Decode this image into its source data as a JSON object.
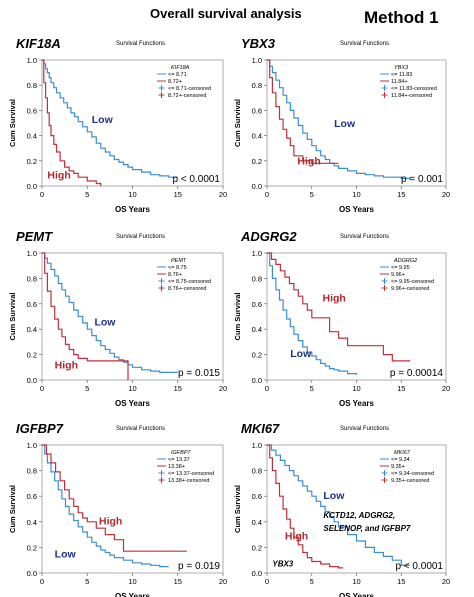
{
  "page": {
    "title": "Overall survival analysis",
    "method": "Method 1"
  },
  "chart_data": [
    {
      "type": "line",
      "gene": "KIF18A",
      "subtitle": "Survival Functions",
      "xlabel": "OS Years",
      "ylabel": "Cum Survival",
      "xlim": [
        0,
        20
      ],
      "ylim": [
        0,
        1.0
      ],
      "xticks": [
        "0",
        "5",
        "10",
        "15",
        "20"
      ],
      "yticks": [
        "0.0",
        "0.2",
        "0.4",
        "0.6",
        "0.8",
        "1.0"
      ],
      "legend_title": "KIF18A",
      "legend": [
        "<= 8.71",
        "8.72+",
        "<= 8.71-censored",
        "8.72+-censored"
      ],
      "pvalue": "p < 0.0001",
      "annotations": [
        {
          "text": "Low",
          "x": 5.5,
          "y": 0.5,
          "color": "#1f2f8c"
        },
        {
          "text": "High",
          "x": 0.6,
          "y": 0.06,
          "color": "#b0282e"
        }
      ],
      "series": [
        {
          "color": "#3a8ed6",
          "x": [
            0,
            0.2,
            0.4,
            0.6,
            0.8,
            1,
            1.3,
            1.6,
            2,
            2.4,
            2.8,
            3.2,
            3.6,
            4,
            4.5,
            5,
            5.5,
            6,
            6.5,
            7,
            7.5,
            8,
            8.5,
            9,
            9.5,
            10,
            11,
            12,
            13,
            14,
            15
          ],
          "y": [
            1,
            0.97,
            0.93,
            0.9,
            0.86,
            0.82,
            0.78,
            0.74,
            0.7,
            0.66,
            0.62,
            0.58,
            0.55,
            0.51,
            0.47,
            0.43,
            0.39,
            0.34,
            0.3,
            0.27,
            0.24,
            0.21,
            0.19,
            0.17,
            0.15,
            0.13,
            0.11,
            0.09,
            0.08,
            0.07,
            0.07
          ]
        },
        {
          "color": "#c0303a",
          "x": [
            0,
            0.2,
            0.4,
            0.6,
            0.8,
            1,
            1.3,
            1.6,
            2,
            2.5,
            3,
            3.5,
            4,
            5,
            6,
            6.5
          ],
          "y": [
            1,
            0.82,
            0.7,
            0.58,
            0.48,
            0.4,
            0.33,
            0.27,
            0.2,
            0.15,
            0.12,
            0.1,
            0.07,
            0.04,
            0.02,
            0
          ]
        }
      ]
    },
    {
      "type": "line",
      "gene": "YBX3",
      "subtitle": "Survival Functions",
      "xlabel": "OS Years",
      "ylabel": "Cum Survival",
      "xlim": [
        0,
        20
      ],
      "ylim": [
        0,
        1.0
      ],
      "xticks": [
        "0",
        "5",
        "10",
        "15",
        "20"
      ],
      "yticks": [
        "0.0",
        "0.2",
        "0.4",
        "0.6",
        "0.8",
        "1.0"
      ],
      "legend_title": "YBX3",
      "legend": [
        "<= 11.83",
        "11.84+",
        "<= 11.83-censored",
        "11.84+-censored"
      ],
      "pvalue": "p = 0.001",
      "annotations": [
        {
          "text": "Low",
          "x": 7.5,
          "y": 0.47,
          "color": "#1f2f8c"
        },
        {
          "text": "High",
          "x": 3.4,
          "y": 0.17,
          "color": "#b0282e"
        }
      ],
      "series": [
        {
          "color": "#3a8ed6",
          "x": [
            0,
            0.3,
            0.6,
            1,
            1.4,
            1.8,
            2.2,
            2.6,
            3,
            3.5,
            4,
            4.5,
            5,
            5.5,
            6,
            6.5,
            7,
            7.5,
            8,
            9,
            10,
            11,
            12,
            13,
            15,
            16
          ],
          "y": [
            1,
            0.95,
            0.9,
            0.84,
            0.78,
            0.72,
            0.66,
            0.6,
            0.54,
            0.48,
            0.42,
            0.37,
            0.32,
            0.28,
            0.24,
            0.21,
            0.18,
            0.16,
            0.14,
            0.12,
            0.1,
            0.09,
            0.08,
            0.07,
            0.06,
            0.05
          ]
        },
        {
          "color": "#c0303a",
          "x": [
            0,
            0.3,
            0.6,
            1,
            1.4,
            1.8,
            2.2,
            2.6,
            3,
            4,
            5,
            6,
            8
          ],
          "y": [
            1,
            0.86,
            0.74,
            0.63,
            0.53,
            0.45,
            0.38,
            0.32,
            0.24,
            0.2,
            0.18,
            0.18,
            0.18
          ]
        }
      ]
    },
    {
      "type": "line",
      "gene": "PEMT",
      "subtitle": "Survival Functions",
      "xlabel": "OS Years",
      "ylabel": "Cum Survival",
      "xlim": [
        0,
        20
      ],
      "ylim": [
        0,
        1.0
      ],
      "xticks": [
        "0",
        "5",
        "10",
        "15",
        "20"
      ],
      "yticks": [
        "0.0",
        "0.2",
        "0.4",
        "0.6",
        "0.8",
        "1.0"
      ],
      "legend_title": "PEMT",
      "legend": [
        "<= 8.75",
        "8.76+",
        "<= 8.75-censored",
        "8.76+-censored"
      ],
      "pvalue": "p = 0.015",
      "annotations": [
        {
          "text": "Low",
          "x": 5.8,
          "y": 0.43,
          "color": "#1f2f8c"
        },
        {
          "text": "High",
          "x": 1.4,
          "y": 0.09,
          "color": "#b0282e"
        }
      ],
      "series": [
        {
          "color": "#3a8ed6",
          "x": [
            0,
            0.3,
            0.6,
            1,
            1.4,
            1.8,
            2.2,
            2.6,
            3,
            3.5,
            4,
            4.5,
            5,
            5.5,
            6,
            6.5,
            7,
            7.5,
            8,
            8.5,
            9,
            9.5,
            10,
            11,
            12,
            13,
            15
          ],
          "y": [
            1,
            0.96,
            0.92,
            0.87,
            0.82,
            0.76,
            0.71,
            0.66,
            0.61,
            0.55,
            0.5,
            0.45,
            0.4,
            0.35,
            0.31,
            0.27,
            0.24,
            0.21,
            0.18,
            0.16,
            0.14,
            0.12,
            0.1,
            0.08,
            0.07,
            0.06,
            0.06
          ]
        },
        {
          "color": "#c0303a",
          "x": [
            0,
            0.3,
            0.6,
            1,
            1.4,
            1.8,
            2.2,
            2.6,
            3,
            3.5,
            4,
            5,
            6,
            7,
            8,
            9,
            9.5
          ],
          "y": [
            1,
            0.84,
            0.7,
            0.58,
            0.48,
            0.4,
            0.34,
            0.28,
            0.24,
            0.2,
            0.17,
            0.15,
            0.15,
            0.15,
            0.15,
            0.15,
            0
          ]
        }
      ]
    },
    {
      "type": "line",
      "gene": "ADGRG2",
      "subtitle": "Survival Functions",
      "xlabel": "OS Years",
      "ylabel": "Cum Survival",
      "xlim": [
        0,
        20
      ],
      "ylim": [
        0,
        1.0
      ],
      "xticks": [
        "0",
        "5",
        "10",
        "15",
        "20"
      ],
      "yticks": [
        "0.0",
        "0.2",
        "0.4",
        "0.6",
        "0.8",
        "1.0"
      ],
      "legend_title": "ADGRG2",
      "legend": [
        "<= 9.95",
        "9.96+",
        "<= 9.95-censored",
        "9.96+-censored"
      ],
      "pvalue": "p = 0.00014",
      "annotations": [
        {
          "text": "High",
          "x": 6.2,
          "y": 0.62,
          "color": "#b0282e"
        },
        {
          "text": "Low",
          "x": 2.6,
          "y": 0.18,
          "color": "#1f2f8c"
        }
      ],
      "series": [
        {
          "color": "#3a8ed6",
          "x": [
            0,
            0.3,
            0.6,
            1,
            1.4,
            1.8,
            2.2,
            2.6,
            3,
            3.5,
            4,
            4.5,
            5,
            5.5,
            6,
            6.5,
            7,
            7.5,
            8,
            9,
            10
          ],
          "y": [
            1,
            0.9,
            0.8,
            0.71,
            0.63,
            0.55,
            0.48,
            0.42,
            0.36,
            0.31,
            0.26,
            0.22,
            0.19,
            0.16,
            0.13,
            0.11,
            0.09,
            0.08,
            0.07,
            0.05,
            0.04
          ]
        },
        {
          "color": "#c0303a",
          "x": [
            0,
            0.5,
            1,
            1.5,
            2,
            2.5,
            3,
            3.5,
            4,
            4.5,
            5,
            6,
            7,
            8,
            9,
            10,
            11,
            12,
            13,
            14,
            15,
            16
          ],
          "y": [
            1,
            0.95,
            0.91,
            0.86,
            0.81,
            0.76,
            0.71,
            0.66,
            0.6,
            0.55,
            0.49,
            0.49,
            0.38,
            0.33,
            0.27,
            0.27,
            0.27,
            0.27,
            0.2,
            0.15,
            0.15,
            0.15
          ]
        }
      ]
    },
    {
      "type": "line",
      "gene": "IGFBP7",
      "subtitle": "Survival Functions",
      "xlabel": "OS Years",
      "ylabel": "Cum Survival",
      "xlim": [
        0,
        20
      ],
      "ylim": [
        0,
        1.0
      ],
      "xticks": [
        "0",
        "5",
        "10",
        "15",
        "20"
      ],
      "yticks": [
        "0.0",
        "0.2",
        "0.4",
        "0.6",
        "0.8",
        "1.0"
      ],
      "legend_title": "IGFBP7",
      "legend": [
        "<= 13.37",
        "13.38+",
        "<= 13.37-censored",
        "13.38+-censored"
      ],
      "pvalue": "p = 0.019",
      "annotations": [
        {
          "text": "High",
          "x": 6.3,
          "y": 0.38,
          "color": "#b0282e"
        },
        {
          "text": "Low",
          "x": 1.4,
          "y": 0.12,
          "color": "#1f2f8c"
        }
      ],
      "series": [
        {
          "color": "#3a8ed6",
          "x": [
            0,
            0.3,
            0.6,
            1,
            1.4,
            1.8,
            2.2,
            2.6,
            3,
            3.5,
            4,
            4.5,
            5,
            5.5,
            6,
            6.5,
            7,
            7.5,
            8,
            9,
            10,
            11,
            12,
            13,
            14
          ],
          "y": [
            1,
            0.93,
            0.86,
            0.79,
            0.72,
            0.65,
            0.58,
            0.52,
            0.46,
            0.41,
            0.36,
            0.32,
            0.28,
            0.24,
            0.21,
            0.18,
            0.16,
            0.14,
            0.12,
            0.1,
            0.08,
            0.07,
            0.06,
            0.05,
            0.05
          ]
        },
        {
          "color": "#c0303a",
          "x": [
            0,
            0.5,
            1,
            1.5,
            2,
            2.5,
            3,
            3.5,
            4,
            4.5,
            5,
            6,
            7,
            8,
            9,
            10,
            12,
            14,
            16
          ],
          "y": [
            1,
            0.93,
            0.86,
            0.79,
            0.72,
            0.65,
            0.58,
            0.52,
            0.47,
            0.43,
            0.4,
            0.35,
            0.3,
            0.26,
            0.17,
            0.17,
            0.17,
            0.17,
            0.17
          ]
        }
      ]
    },
    {
      "type": "line",
      "gene": "MKI67",
      "subtitle": "Survival Functions",
      "xlabel": "OS Years",
      "ylabel": "Cum Survival",
      "xlim": [
        0,
        20
      ],
      "ylim": [
        0,
        1.0
      ],
      "xticks": [
        "0",
        "5",
        "10",
        "15",
        "20"
      ],
      "yticks": [
        "0.0",
        "0.2",
        "0.4",
        "0.6",
        "0.8",
        "1.0"
      ],
      "legend_title": "MKI67",
      "legend": [
        "<= 9.34",
        "9.35+",
        "<= 9.34-censored",
        "9.35+-censored"
      ],
      "pvalue": "p < 0.0001",
      "annotations": [
        {
          "text": "Low",
          "x": 6.3,
          "y": 0.58,
          "color": "#1f2f8c"
        },
        {
          "text": "High",
          "x": 2.0,
          "y": 0.26,
          "color": "#b0282e"
        }
      ],
      "notes": [
        {
          "text": "KCTD12, ADGRG2,",
          "x": 6.3,
          "y": 0.43
        },
        {
          "text": "SELENOP, and IGFBP7",
          "x": 6.3,
          "y": 0.33
        },
        {
          "text": "YBX3",
          "x": 0.6,
          "y": 0.05
        }
      ],
      "series": [
        {
          "color": "#3a8ed6",
          "x": [
            0,
            0.5,
            1,
            1.5,
            2,
            2.5,
            3,
            3.5,
            4,
            4.5,
            5,
            5.5,
            6,
            6.5,
            7,
            7.5,
            8,
            9,
            10,
            11,
            12,
            13,
            14,
            15,
            16
          ],
          "y": [
            1,
            0.96,
            0.92,
            0.88,
            0.84,
            0.8,
            0.76,
            0.72,
            0.68,
            0.64,
            0.6,
            0.56,
            0.52,
            0.48,
            0.44,
            0.4,
            0.36,
            0.3,
            0.25,
            0.2,
            0.16,
            0.13,
            0.1,
            0.06,
            0.06
          ]
        },
        {
          "color": "#c0303a",
          "x": [
            0,
            0.3,
            0.6,
            1,
            1.4,
            1.8,
            2.2,
            2.6,
            3,
            3.5,
            4,
            4.5,
            5,
            6,
            7,
            8,
            8.5
          ],
          "y": [
            1,
            0.9,
            0.8,
            0.7,
            0.6,
            0.5,
            0.42,
            0.35,
            0.28,
            0.22,
            0.16,
            0.12,
            0.09,
            0.07,
            0.05,
            0.04,
            0.04
          ]
        }
      ]
    }
  ]
}
